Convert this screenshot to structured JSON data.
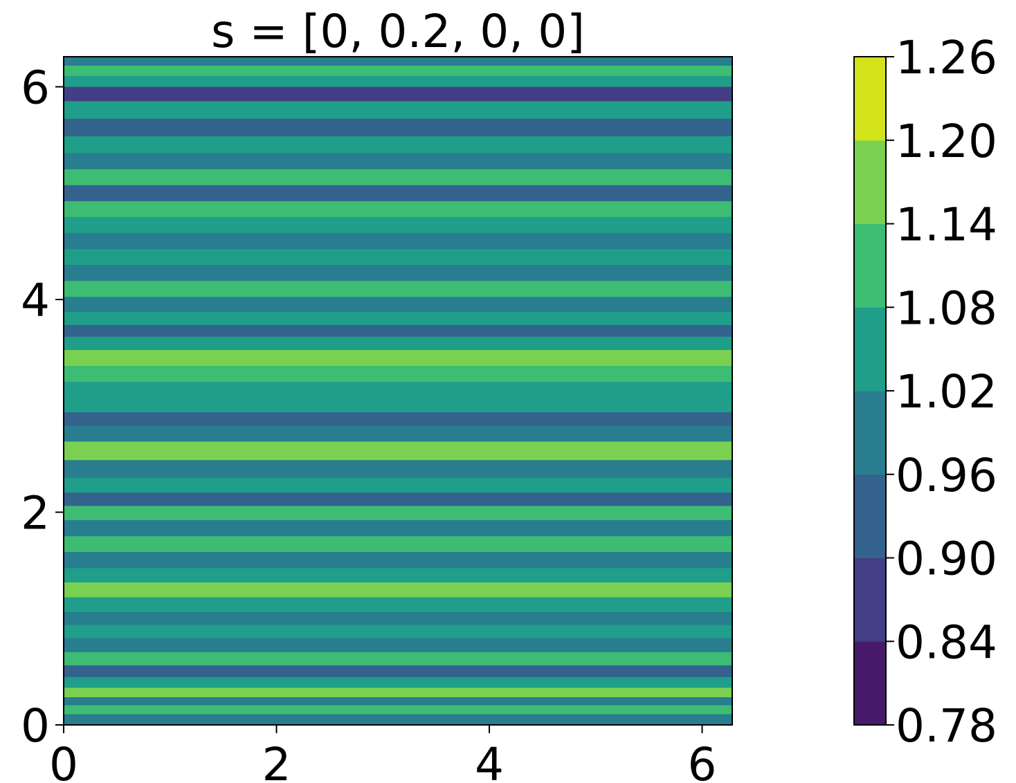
{
  "chart_data": {
    "type": "heatmap",
    "title": "s = [0, 0.2, 0, 0]",
    "xlabel": "",
    "ylabel": "",
    "xlim": [
      0,
      6.283
    ],
    "ylim": [
      0,
      6.283
    ],
    "x_ticks": [
      {
        "value": 0,
        "label": "0"
      },
      {
        "value": 2,
        "label": "2"
      },
      {
        "value": 4,
        "label": "4"
      },
      {
        "value": 6,
        "label": "6"
      }
    ],
    "y_ticks": [
      {
        "value": 0,
        "label": "0"
      },
      {
        "value": 2,
        "label": "2"
      },
      {
        "value": 4,
        "label": "4"
      },
      {
        "value": 6,
        "label": "6"
      }
    ],
    "colorbar": {
      "levels": [
        0.78,
        0.84,
        0.9,
        0.96,
        1.02,
        1.08,
        1.14,
        1.2,
        1.26
      ],
      "labels": [
        "0.78",
        "0.84",
        "0.90",
        "0.96",
        "1.02",
        "1.08",
        "1.14",
        "1.20",
        "1.26"
      ],
      "colors": [
        "#481a6c",
        "#433e85",
        "#31688e",
        "#29798e",
        "#1f9e89",
        "#35b779",
        "#6ece58",
        "#b5de2b",
        "#d5e21a"
      ],
      "band_colors": [
        "#481a6c",
        "#433e85",
        "#33638d",
        "#287d8e",
        "#1f9e89",
        "#3dbc74",
        "#7ad151",
        "#d2e21b"
      ]
    },
    "description_of_pattern": "",
    "rows": [
      {
        "y": 0.05,
        "v": 0.97
      },
      {
        "y": 0.15,
        "v": 1.08
      },
      {
        "y": 0.22,
        "v": 0.99
      },
      {
        "y": 0.3,
        "v": 1.15
      },
      {
        "y": 0.4,
        "v": 1.02
      },
      {
        "y": 0.5,
        "v": 0.95
      },
      {
        "y": 0.62,
        "v": 1.13
      },
      {
        "y": 0.75,
        "v": 1.01
      },
      {
        "y": 0.88,
        "v": 1.05
      },
      {
        "y": 1.0,
        "v": 0.96
      },
      {
        "y": 1.12,
        "v": 1.06
      },
      {
        "y": 1.28,
        "v": 1.16
      },
      {
        "y": 1.4,
        "v": 1.03
      },
      {
        "y": 1.55,
        "v": 0.98
      },
      {
        "y": 1.7,
        "v": 1.09
      },
      {
        "y": 1.85,
        "v": 1.0
      },
      {
        "y": 2.0,
        "v": 1.1
      },
      {
        "y": 2.12,
        "v": 0.9
      },
      {
        "y": 2.25,
        "v": 1.04
      },
      {
        "y": 2.4,
        "v": 0.97
      },
      {
        "y": 2.58,
        "v": 1.14
      },
      {
        "y": 2.75,
        "v": 1.0
      },
      {
        "y": 2.88,
        "v": 0.94
      },
      {
        "y": 3.0,
        "v": 1.06
      },
      {
        "y": 3.15,
        "v": 1.02
      },
      {
        "y": 3.3,
        "v": 1.09
      },
      {
        "y": 3.45,
        "v": 1.15
      },
      {
        "y": 3.6,
        "v": 1.03
      },
      {
        "y": 3.7,
        "v": 0.93
      },
      {
        "y": 3.82,
        "v": 1.07
      },
      {
        "y": 3.95,
        "v": 1.0
      },
      {
        "y": 4.1,
        "v": 1.08
      },
      {
        "y": 4.25,
        "v": 0.96
      },
      {
        "y": 4.4,
        "v": 1.04
      },
      {
        "y": 4.55,
        "v": 0.98
      },
      {
        "y": 4.7,
        "v": 1.05
      },
      {
        "y": 4.85,
        "v": 1.12
      },
      {
        "y": 5.0,
        "v": 0.92
      },
      {
        "y": 5.15,
        "v": 1.08
      },
      {
        "y": 5.3,
        "v": 1.01
      },
      {
        "y": 5.45,
        "v": 1.05
      },
      {
        "y": 5.62,
        "v": 0.91
      },
      {
        "y": 5.78,
        "v": 1.04
      },
      {
        "y": 5.95,
        "v": 0.89
      },
      {
        "y": 6.05,
        "v": 1.06
      },
      {
        "y": 6.15,
        "v": 1.11
      },
      {
        "y": 6.25,
        "v": 1.0
      }
    ]
  }
}
